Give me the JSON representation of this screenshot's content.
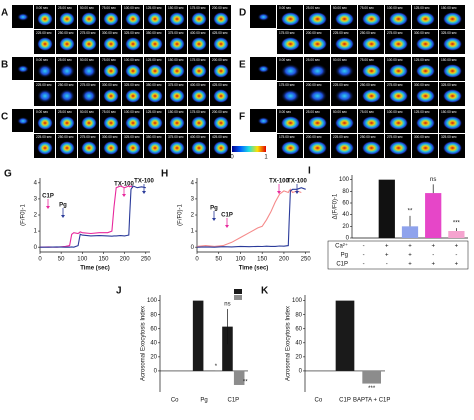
{
  "image_panels": {
    "letters": [
      "A",
      "B",
      "C",
      "D",
      "E",
      "F"
    ],
    "times": [
      "0.00 sec",
      "25.00 sec",
      "50.00 sec",
      "75.00 sec",
      "100.00 sec",
      "125.00 sec",
      "150.00 sec",
      "175.00 sec",
      "200.00 sec",
      "225.00 sec",
      "250.00 sec",
      "275.00 sec",
      "300.00 sec",
      "325.00 sec",
      "350.00 sec",
      "375.00 sec",
      "400.00 sec",
      "425.00 sec"
    ],
    "colorbar": [
      "0",
      "1"
    ]
  },
  "chart_data": [
    {
      "type": "line",
      "letter": "G",
      "y_label": "(F/F0)-1",
      "x_label": "Time (sec)",
      "x": [
        0,
        20,
        40,
        60,
        70,
        75,
        80,
        90,
        95,
        100,
        120,
        140,
        160,
        170,
        175,
        180,
        190,
        200,
        210,
        212,
        215,
        220,
        230,
        240,
        250
      ],
      "xlim": [
        0,
        260
      ],
      "xticks": [
        0,
        50,
        100,
        150,
        200,
        250
      ],
      "ylim": [
        -0.3,
        4.3
      ],
      "yticks": [
        0,
        1,
        2,
        3,
        4
      ],
      "series": [
        {
          "color": "#e8289c",
          "values": [
            0,
            0.02,
            0,
            0.05,
            0.1,
            0.8,
            0.9,
            0.85,
            0.95,
            0.9,
            0.85,
            0.9,
            0.9,
            1.0,
            2.5,
            3.7,
            3.8,
            3.7,
            3.8,
            3.75,
            3.8,
            3.7,
            null,
            null,
            null
          ]
        },
        {
          "color": "#2a3a9a",
          "values": [
            0,
            0,
            0.02,
            0,
            0,
            0.02,
            0,
            0.1,
            0.8,
            0.75,
            0.7,
            0.72,
            0.7,
            0.68,
            0.7,
            0.7,
            0.72,
            0.7,
            0.75,
            2.0,
            3.6,
            3.8,
            3.7,
            3.75,
            3.7
          ]
        }
      ],
      "annotations": [
        {
          "text": "C1P",
          "color": "#e8289c"
        },
        {
          "text": "Pg",
          "color": "#2a3a9a"
        },
        {
          "text": "TX-100",
          "color": "#e8289c"
        },
        {
          "text": "TX-100",
          "color": "#2a3a9a"
        }
      ]
    },
    {
      "type": "line",
      "letter": "H",
      "y_label": "(F/F0)-1",
      "x_label": "Time (sec)",
      "x": [
        0,
        20,
        40,
        60,
        80,
        100,
        120,
        140,
        150,
        160,
        170,
        180,
        190,
        200,
        210,
        212,
        215,
        220,
        230,
        240,
        250
      ],
      "xlim": [
        0,
        260
      ],
      "xticks": [
        0,
        50,
        100,
        150,
        200,
        250
      ],
      "ylim": [
        -0.3,
        4.3
      ],
      "yticks": [
        0,
        1,
        2,
        3,
        4
      ],
      "series": [
        {
          "color": "#f58a8a",
          "values": [
            0.05,
            0.1,
            0.05,
            0.1,
            0.3,
            0.6,
            0.9,
            1.2,
            1.3,
            1.7,
            2.2,
            2.8,
            3.3,
            3.5,
            3.4,
            3.5,
            3.6,
            3.4,
            3.5,
            3.4,
            null
          ]
        },
        {
          "color": "#2a3a9a",
          "values": [
            0,
            0.02,
            0,
            0.03,
            0.02,
            0.05,
            0.03,
            0.05,
            0.04,
            0.06,
            0.05,
            0.05,
            0.07,
            0.06,
            0.1,
            1.5,
            3.5,
            3.6,
            3.6,
            3.7,
            3.6
          ]
        }
      ],
      "annotations": [
        {
          "text": "Pg",
          "color": "#2a3a9a"
        },
        {
          "text": "C1P",
          "color": "#e8289c"
        },
        {
          "text": "TX-100",
          "color": "#e8289c"
        },
        {
          "text": "TX-100",
          "color": "#2a3a9a"
        }
      ]
    },
    {
      "type": "bar",
      "letter": "I",
      "y_label": "Δ(F/F0)-1",
      "ylim": [
        0,
        108
      ],
      "yticks": [
        0,
        20,
        40,
        60,
        80,
        100
      ],
      "values": [
        0,
        100,
        20,
        77,
        12
      ],
      "errors": [
        0,
        0,
        18,
        15,
        5
      ],
      "colors": [
        "#111111",
        "#111111",
        "#8ea2ec",
        "#e646c8",
        "#f5a3cf"
      ],
      "annotations": [
        "**",
        "ns",
        "***"
      ],
      "conditions": {
        "rows": [
          "Ca²⁺",
          "Pg",
          "C1P"
        ],
        "cells": [
          [
            "-",
            "+",
            "+",
            "+",
            "+"
          ],
          [
            "-",
            "+",
            "+",
            "-",
            "-"
          ],
          [
            "-",
            "-",
            "+",
            "+",
            "+"
          ]
        ]
      }
    },
    {
      "type": "grouped-bar",
      "letter": "J",
      "y_label": "Acrosomal Exocytosis Index",
      "ylim": [
        -30,
        108
      ],
      "yticks": [
        0,
        20,
        40,
        60,
        80,
        100
      ],
      "categories": [
        "Co",
        "Pg",
        "C1P"
      ],
      "series": [
        {
          "color": "#1a1a1a",
          "values": [
            0,
            100,
            63
          ],
          "errors": [
            0,
            0,
            25
          ]
        },
        {
          "color": "#8c8c8c",
          "values": [
            0,
            1,
            -20
          ],
          "errors": [
            0,
            0,
            0
          ]
        }
      ],
      "annotations": [
        "ns",
        "*",
        "**"
      ]
    },
    {
      "type": "bar",
      "letter": "K",
      "y_label": "Acrosomal Exocytosis Index",
      "ylim": [
        -30,
        108
      ],
      "yticks": [
        0,
        20,
        40,
        60,
        80,
        100
      ],
      "categories": [
        "Co",
        "C1P",
        "BAPTA + C1P"
      ],
      "values": [
        0,
        100,
        -18
      ],
      "errors": [
        0,
        0,
        0
      ],
      "colors": [
        "#1a1a1a",
        "#1a1a1a",
        "#8c8c8c"
      ],
      "annotations": [
        "***"
      ]
    }
  ]
}
